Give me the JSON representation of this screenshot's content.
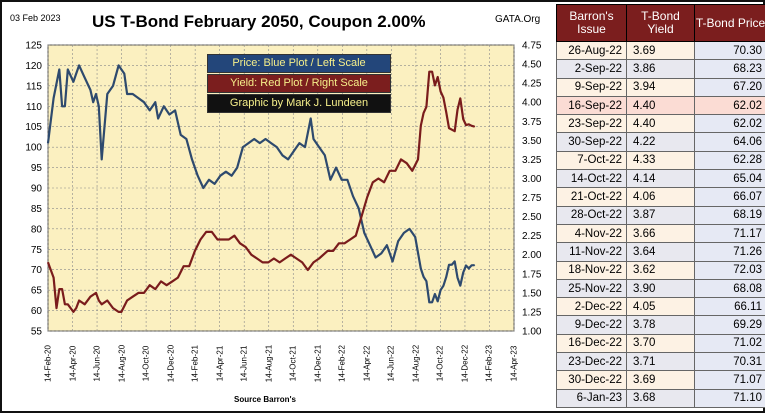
{
  "chart": {
    "date_stamp": "03 Feb 2023",
    "title": "US T-Bond February 2050, Coupon 2.00%",
    "site": "GATA.Org",
    "legend": {
      "price": "Price:  Blue Plot / Left Scale",
      "yield": "Yield:  Red Plot / Right Scale",
      "credit": "Graphic by Mark J. Lundeen"
    },
    "source": "Source Barron's",
    "colors": {
      "price_line": "#2e4a6e",
      "yield_line": "#7a1c1c",
      "plot_bg": "#fbf0c0",
      "grid": "#8a8a8a",
      "legend_price_bg": "#23467a",
      "legend_price_text": "#f6ef8a",
      "legend_yield_bg": "#7b1e1e",
      "legend_yield_text": "#f6ef8a",
      "legend_credit_bg": "#111111",
      "legend_credit_text": "#f6ef8a"
    }
  },
  "chart_data": {
    "type": "line",
    "title": "US T-Bond February 2050, Coupon 2.00%",
    "xlabel": "Source Barron's",
    "x_tick_labels": [
      "14-Feb-20",
      "14-Apr-20",
      "14-Jun-20",
      "14-Aug-20",
      "14-Oct-20",
      "14-Dec-20",
      "14-Feb-21",
      "14-Apr-21",
      "14-Jun-21",
      "14-Aug-21",
      "14-Oct-21",
      "14-Dec-21",
      "14-Feb-22",
      "14-Apr-22",
      "14-Jun-22",
      "14-Aug-22",
      "14-Oct-22",
      "14-Dec-22",
      "14-Feb-23",
      "14-Apr-23"
    ],
    "left_axis": {
      "ylim": [
        55,
        125
      ],
      "ticks": [
        55,
        60,
        65,
        70,
        75,
        80,
        85,
        90,
        95,
        100,
        105,
        110,
        115,
        120,
        125
      ]
    },
    "right_axis": {
      "ylim": [
        1.0,
        4.75
      ],
      "ticks": [
        "1.00",
        "1.25",
        "1.50",
        "1.75",
        "2.00",
        "2.25",
        "2.50",
        "2.75",
        "3.00",
        "3.25",
        "3.50",
        "3.75",
        "4.00",
        "4.25",
        "4.50",
        "4.75"
      ]
    },
    "grid": true,
    "series": [
      {
        "name": "Price",
        "axis": "left",
        "points": [
          [
            "2020-02-14",
            101
          ],
          [
            "2020-02-28",
            112
          ],
          [
            "2020-03-13",
            119
          ],
          [
            "2020-03-20",
            110
          ],
          [
            "2020-03-27",
            110
          ],
          [
            "2020-04-03",
            119
          ],
          [
            "2020-04-17",
            116
          ],
          [
            "2020-04-24",
            118
          ],
          [
            "2020-05-01",
            120
          ],
          [
            "2020-05-15",
            117
          ],
          [
            "2020-05-29",
            114
          ],
          [
            "2020-06-05",
            111
          ],
          [
            "2020-06-12",
            113
          ],
          [
            "2020-06-19",
            110
          ],
          [
            "2020-06-26",
            97
          ],
          [
            "2020-07-10",
            113
          ],
          [
            "2020-07-24",
            115
          ],
          [
            "2020-08-07",
            120
          ],
          [
            "2020-08-14",
            119
          ],
          [
            "2020-08-21",
            118
          ],
          [
            "2020-08-28",
            113
          ],
          [
            "2020-09-11",
            113
          ],
          [
            "2020-09-25",
            112
          ],
          [
            "2020-10-09",
            111
          ],
          [
            "2020-10-23",
            109
          ],
          [
            "2020-11-06",
            111
          ],
          [
            "2020-11-13",
            107
          ],
          [
            "2020-11-27",
            110
          ],
          [
            "2020-12-11",
            108
          ],
          [
            "2020-12-25",
            109
          ],
          [
            "2021-01-08",
            103
          ],
          [
            "2021-01-22",
            102
          ],
          [
            "2021-02-05",
            97
          ],
          [
            "2021-02-19",
            93
          ],
          [
            "2021-03-05",
            90
          ],
          [
            "2021-03-19",
            92
          ],
          [
            "2021-04-02",
            91
          ],
          [
            "2021-04-16",
            93
          ],
          [
            "2021-04-30",
            94
          ],
          [
            "2021-05-14",
            93
          ],
          [
            "2021-05-28",
            95
          ],
          [
            "2021-06-11",
            100
          ],
          [
            "2021-06-25",
            101
          ],
          [
            "2021-07-09",
            102
          ],
          [
            "2021-07-23",
            101
          ],
          [
            "2021-08-06",
            102
          ],
          [
            "2021-08-20",
            101
          ],
          [
            "2021-09-03",
            100
          ],
          [
            "2021-09-17",
            98
          ],
          [
            "2021-10-01",
            97
          ],
          [
            "2021-10-15",
            99
          ],
          [
            "2021-10-29",
            101
          ],
          [
            "2021-11-12",
            100
          ],
          [
            "2021-11-26",
            107
          ],
          [
            "2021-12-03",
            102
          ],
          [
            "2021-12-17",
            100
          ],
          [
            "2021-12-31",
            98
          ],
          [
            "2022-01-14",
            92
          ],
          [
            "2022-01-28",
            95
          ],
          [
            "2022-02-11",
            92
          ],
          [
            "2022-02-25",
            92
          ],
          [
            "2022-03-11",
            88
          ],
          [
            "2022-03-25",
            85
          ],
          [
            "2022-04-08",
            79
          ],
          [
            "2022-04-22",
            76
          ],
          [
            "2022-05-06",
            73
          ],
          [
            "2022-05-20",
            74
          ],
          [
            "2022-06-03",
            76
          ],
          [
            "2022-06-17",
            72
          ],
          [
            "2022-07-01",
            77
          ],
          [
            "2022-07-15",
            79
          ],
          [
            "2022-07-29",
            80
          ],
          [
            "2022-08-12",
            78
          ],
          [
            "2022-08-26",
            70.3
          ],
          [
            "2022-09-02",
            68.23
          ],
          [
            "2022-09-09",
            67.2
          ],
          [
            "2022-09-16",
            62.02
          ],
          [
            "2022-09-23",
            62.02
          ],
          [
            "2022-09-30",
            64.06
          ],
          [
            "2022-10-07",
            62.28
          ],
          [
            "2022-10-14",
            65.04
          ],
          [
            "2022-10-21",
            66.07
          ],
          [
            "2022-10-28",
            68.19
          ],
          [
            "2022-11-04",
            71.17
          ],
          [
            "2022-11-11",
            71.26
          ],
          [
            "2022-11-18",
            72.03
          ],
          [
            "2022-11-25",
            68.08
          ],
          [
            "2022-12-02",
            66.11
          ],
          [
            "2022-12-09",
            69.29
          ],
          [
            "2022-12-16",
            71.02
          ],
          [
            "2022-12-23",
            70.31
          ],
          [
            "2022-12-30",
            71.07
          ],
          [
            "2023-01-06",
            71.1
          ]
        ]
      },
      {
        "name": "Yield",
        "axis": "right",
        "points": [
          [
            "2020-02-14",
            1.9
          ],
          [
            "2020-02-28",
            1.7
          ],
          [
            "2020-03-06",
            1.3
          ],
          [
            "2020-03-13",
            1.55
          ],
          [
            "2020-03-20",
            1.55
          ],
          [
            "2020-03-27",
            1.35
          ],
          [
            "2020-04-03",
            1.35
          ],
          [
            "2020-04-17",
            1.25
          ],
          [
            "2020-04-24",
            1.3
          ],
          [
            "2020-05-01",
            1.4
          ],
          [
            "2020-05-15",
            1.35
          ],
          [
            "2020-05-29",
            1.45
          ],
          [
            "2020-06-12",
            1.5
          ],
          [
            "2020-06-19",
            1.4
          ],
          [
            "2020-06-26",
            1.35
          ],
          [
            "2020-07-10",
            1.4
          ],
          [
            "2020-07-24",
            1.3
          ],
          [
            "2020-08-07",
            1.25
          ],
          [
            "2020-08-14",
            1.25
          ],
          [
            "2020-08-28",
            1.4
          ],
          [
            "2020-09-11",
            1.45
          ],
          [
            "2020-09-25",
            1.5
          ],
          [
            "2020-10-09",
            1.5
          ],
          [
            "2020-10-23",
            1.6
          ],
          [
            "2020-11-06",
            1.55
          ],
          [
            "2020-11-20",
            1.65
          ],
          [
            "2020-12-04",
            1.6
          ],
          [
            "2020-12-18",
            1.65
          ],
          [
            "2021-01-01",
            1.7
          ],
          [
            "2021-01-15",
            1.85
          ],
          [
            "2021-01-29",
            1.85
          ],
          [
            "2021-02-12",
            2.05
          ],
          [
            "2021-02-26",
            2.2
          ],
          [
            "2021-03-12",
            2.3
          ],
          [
            "2021-03-26",
            2.3
          ],
          [
            "2021-04-09",
            2.2
          ],
          [
            "2021-04-23",
            2.2
          ],
          [
            "2021-05-07",
            2.2
          ],
          [
            "2021-05-21",
            2.25
          ],
          [
            "2021-06-04",
            2.15
          ],
          [
            "2021-06-18",
            2.1
          ],
          [
            "2021-07-02",
            2.0
          ],
          [
            "2021-07-16",
            1.95
          ],
          [
            "2021-07-30",
            1.9
          ],
          [
            "2021-08-13",
            1.9
          ],
          [
            "2021-08-27",
            1.95
          ],
          [
            "2021-09-10",
            1.9
          ],
          [
            "2021-09-24",
            1.95
          ],
          [
            "2021-10-08",
            2.0
          ],
          [
            "2021-10-22",
            1.95
          ],
          [
            "2021-11-05",
            1.9
          ],
          [
            "2021-11-19",
            1.8
          ],
          [
            "2021-12-03",
            1.9
          ],
          [
            "2021-12-17",
            1.95
          ],
          [
            "2022-01-07",
            2.05
          ],
          [
            "2022-01-21",
            2.05
          ],
          [
            "2022-02-04",
            2.15
          ],
          [
            "2022-02-18",
            2.15
          ],
          [
            "2022-03-04",
            2.2
          ],
          [
            "2022-03-18",
            2.25
          ],
          [
            "2022-04-01",
            2.5
          ],
          [
            "2022-04-15",
            2.75
          ],
          [
            "2022-04-29",
            2.95
          ],
          [
            "2022-05-13",
            3.0
          ],
          [
            "2022-05-27",
            2.95
          ],
          [
            "2022-06-10",
            3.1
          ],
          [
            "2022-06-24",
            3.1
          ],
          [
            "2022-07-08",
            3.25
          ],
          [
            "2022-07-22",
            3.2
          ],
          [
            "2022-08-05",
            3.1
          ],
          [
            "2022-08-19",
            3.25
          ],
          [
            "2022-08-26",
            3.69
          ],
          [
            "2022-09-02",
            3.86
          ],
          [
            "2022-09-09",
            3.94
          ],
          [
            "2022-09-16",
            4.4
          ],
          [
            "2022-09-23",
            4.4
          ],
          [
            "2022-09-30",
            4.22
          ],
          [
            "2022-10-07",
            4.33
          ],
          [
            "2022-10-14",
            4.14
          ],
          [
            "2022-10-21",
            4.06
          ],
          [
            "2022-10-28",
            3.87
          ],
          [
            "2022-11-04",
            3.66
          ],
          [
            "2022-11-11",
            3.64
          ],
          [
            "2022-11-18",
            3.62
          ],
          [
            "2022-11-25",
            3.9
          ],
          [
            "2022-12-02",
            4.05
          ],
          [
            "2022-12-09",
            3.78
          ],
          [
            "2022-12-16",
            3.7
          ],
          [
            "2022-12-23",
            3.71
          ],
          [
            "2022-12-30",
            3.69
          ],
          [
            "2023-01-06",
            3.68
          ]
        ]
      }
    ]
  },
  "table": {
    "headers": [
      "Barron's Issue",
      "T-Bond Yield",
      "T-Bond Price"
    ],
    "rows": [
      {
        "issue": "26-Aug-22",
        "yield": "3.69",
        "price": "70.30"
      },
      {
        "issue": "2-Sep-22",
        "yield": "3.86",
        "price": "68.23"
      },
      {
        "issue": "9-Sep-22",
        "yield": "3.94",
        "price": "67.20"
      },
      {
        "issue": "16-Sep-22",
        "yield": "4.40",
        "price": "62.02"
      },
      {
        "issue": "23-Sep-22",
        "yield": "4.40",
        "price": "62.02"
      },
      {
        "issue": "30-Sep-22",
        "yield": "4.22",
        "price": "64.06"
      },
      {
        "issue": "7-Oct-22",
        "yield": "4.33",
        "price": "62.28"
      },
      {
        "issue": "14-Oct-22",
        "yield": "4.14",
        "price": "65.04"
      },
      {
        "issue": "21-Oct-22",
        "yield": "4.06",
        "price": "66.07"
      },
      {
        "issue": "28-Oct-22",
        "yield": "3.87",
        "price": "68.19"
      },
      {
        "issue": "4-Nov-22",
        "yield": "3.66",
        "price": "71.17"
      },
      {
        "issue": "11-Nov-22",
        "yield": "3.64",
        "price": "71.26"
      },
      {
        "issue": "18-Nov-22",
        "yield": "3.62",
        "price": "72.03"
      },
      {
        "issue": "25-Nov-22",
        "yield": "3.90",
        "price": "68.08"
      },
      {
        "issue": "2-Dec-22",
        "yield": "4.05",
        "price": "66.11"
      },
      {
        "issue": "9-Dec-22",
        "yield": "3.78",
        "price": "69.29"
      },
      {
        "issue": "16-Dec-22",
        "yield": "3.70",
        "price": "71.02"
      },
      {
        "issue": "23-Dec-22",
        "yield": "3.71",
        "price": "70.31"
      },
      {
        "issue": "30-Dec-22",
        "yield": "3.69",
        "price": "71.07"
      },
      {
        "issue": "6-Jan-23",
        "yield": "3.68",
        "price": "71.10"
      }
    ],
    "highlighted_issue": "16-Sep-22"
  }
}
